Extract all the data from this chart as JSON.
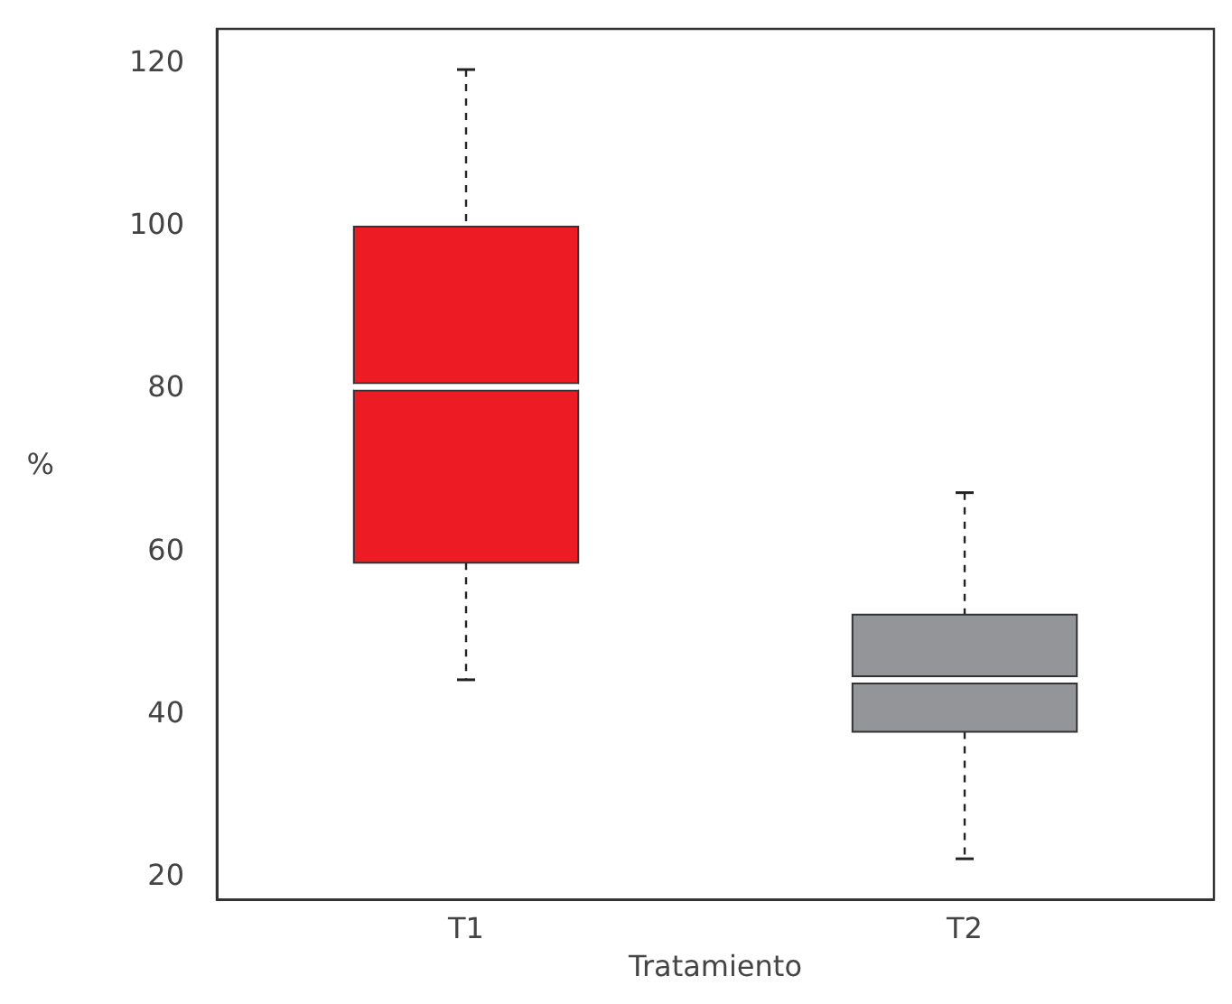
{
  "chart_data": {
    "type": "box",
    "xlabel": "Tratamiento",
    "ylabel": "%",
    "categories": [
      "T1",
      "T2"
    ],
    "colors": [
      "#ed1c24",
      "#939598"
    ],
    "boxes": [
      {
        "low": 44,
        "q1": 58.4,
        "median": 80,
        "q3": 99.7,
        "high": 119
      },
      {
        "low": 22,
        "q1": 37.6,
        "median": 44,
        "q3": 52,
        "high": 67
      }
    ],
    "ylim": [
      17,
      124
    ],
    "yticks": [
      20,
      40,
      60,
      80,
      100,
      120
    ],
    "grid": false
  }
}
